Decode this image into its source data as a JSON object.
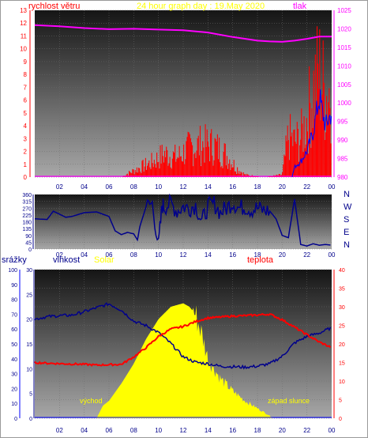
{
  "header": {
    "wind_label": "rychlost větru",
    "title": "24 hour graph day : 19.May 2020",
    "pressure_label": "tlak"
  },
  "bottom_header": {
    "rain_label": "srážky",
    "humidity_label": "vlhkost",
    "solar_label": "Solar",
    "temp_label": "teplota"
  },
  "sun": {
    "sunrise_label": "východ",
    "sunset_label": "západ slunce"
  },
  "colors": {
    "wind": "#ff0000",
    "gust": "#ff0000",
    "wind_avg": "#0000ff",
    "pressure": "#ff00ff",
    "direction": "#00008b",
    "humidity": "#00008b",
    "temperature": "#ff0000",
    "solar": "#ffff00",
    "rain": "#0000ff",
    "wind_axis": "#ff0000",
    "pressure_axis": "#ff00ff",
    "title": "#ffff00",
    "compass": "#00008b"
  },
  "chart_data": [
    {
      "type": "line",
      "name": "wind_pressure",
      "x_ticks": [
        "02",
        "04",
        "06",
        "08",
        "10",
        "12",
        "14",
        "16",
        "18",
        "20",
        "22",
        "00"
      ],
      "y_left_ticks": [
        "0",
        "1",
        "2",
        "3",
        "4",
        "5",
        "6",
        "7",
        "8",
        "9",
        "10",
        "11",
        "12",
        "13"
      ],
      "y_right_ticks": [
        "980",
        "985",
        "990",
        "995",
        "1000",
        "1005",
        "1010",
        "1015",
        "1020",
        "1025"
      ],
      "ylim_left": [
        0,
        13
      ],
      "ylim_right": [
        980,
        1025
      ],
      "xlim": [
        0,
        24
      ],
      "pressure": {
        "x": [
          0,
          2,
          4,
          6,
          8,
          10,
          12,
          14,
          16,
          18,
          19,
          20,
          21,
          22,
          23,
          24
        ],
        "y": [
          1021,
          1020.7,
          1020.2,
          1019.9,
          1020,
          1019.8,
          1019.6,
          1019,
          1017.8,
          1016.8,
          1016.6,
          1016.5,
          1016.8,
          1017.3,
          1017.9,
          1017.9
        ]
      },
      "wind_profile": {
        "x": [
          0,
          7,
          7.5,
          8.5,
          9.5,
          10.5,
          11.5,
          12.5,
          13.5,
          14.5,
          15.5,
          16.3,
          17,
          18.5,
          20,
          20.5,
          21,
          21.5,
          22,
          22.5,
          23,
          23.5,
          24
        ],
        "y": [
          0,
          0,
          0.3,
          0.8,
          1.3,
          2.0,
          1.7,
          2.5,
          2.8,
          2.7,
          1.9,
          0.8,
          0.2,
          0,
          0.2,
          3.5,
          3.0,
          3.4,
          5.0,
          7.5,
          9.0,
          7.0,
          8.0
        ]
      },
      "avg_wind": {
        "x": [
          0,
          20.8,
          21,
          21.5,
          22,
          22.5,
          23,
          23.5,
          24
        ],
        "y": [
          0,
          0,
          0.8,
          1.2,
          2.0,
          3.5,
          6.2,
          4.0,
          5.0
        ]
      }
    },
    {
      "type": "line",
      "name": "wind_direction",
      "x_ticks": [
        "02",
        "04",
        "06",
        "08",
        "10",
        "12",
        "14",
        "16",
        "18",
        "20",
        "22",
        "00"
      ],
      "y_ticks": [
        "0",
        "45",
        "90",
        "135",
        "180",
        "225",
        "270",
        "315",
        "360"
      ],
      "ylim": [
        0,
        360
      ],
      "compass_labels": [
        "N",
        "W",
        "S",
        "E",
        "N"
      ],
      "x": [
        0,
        1,
        1.5,
        2,
        2.5,
        3,
        4,
        5,
        6,
        6.5,
        7,
        7.5,
        8,
        8.3,
        8.5,
        9,
        9.5,
        10,
        10.3,
        10.5,
        11,
        11.5,
        12,
        12.5,
        13,
        13.5,
        14,
        14.5,
        15,
        15.5,
        16,
        16.5,
        17,
        17.5,
        18,
        18.5,
        19,
        19.5,
        20,
        20.5,
        21,
        21.5,
        22,
        22.5,
        23,
        23.5,
        24
      ],
      "y": [
        200,
        195,
        250,
        230,
        210,
        215,
        240,
        245,
        215,
        120,
        95,
        110,
        100,
        60,
        150,
        280,
        300,
        20,
        290,
        280,
        300,
        250,
        280,
        270,
        290,
        180,
        280,
        300,
        240,
        270,
        310,
        270,
        280,
        260,
        270,
        255,
        250,
        200,
        90,
        75,
        330,
        30,
        20,
        35,
        25,
        30,
        25
      ]
    },
    {
      "type": "line",
      "name": "temp_humidity_solar_rain",
      "x_ticks": [
        "02",
        "04",
        "06",
        "08",
        "10",
        "12",
        "14",
        "16",
        "18",
        "20",
        "22",
        "00"
      ],
      "rain_ticks": [
        "0",
        "10",
        "20",
        "30",
        "40",
        "50",
        "60",
        "70",
        "80",
        "90",
        "100"
      ],
      "humidity_ticks": [
        "0",
        "5",
        "10",
        "15",
        "20",
        "25",
        "30"
      ],
      "temp_ticks": [
        "0",
        "5",
        "10",
        "15",
        "20",
        "25",
        "30",
        "35",
        "40"
      ],
      "ylim_rain": [
        0,
        100
      ],
      "ylim_humidity": [
        0,
        30
      ],
      "ylim_temp": [
        0,
        40
      ],
      "humidity": {
        "x": [
          0,
          1,
          2,
          3,
          4,
          5,
          6,
          7,
          8,
          9,
          10,
          11,
          12,
          13,
          14,
          15,
          16,
          17,
          18,
          19,
          20,
          21,
          22,
          23,
          24
        ],
        "y": [
          20,
          20.5,
          20.7,
          20.8,
          21.5,
          22.3,
          23.1,
          21.8,
          19.6,
          18.7,
          17.3,
          15.1,
          12.4,
          11.3,
          11.0,
          10.5,
          10.4,
          10.3,
          10.5,
          11.0,
          12.5,
          15.2,
          16.5,
          17.2,
          18.3
        ]
      },
      "temperature": {
        "x": [
          0,
          1,
          2,
          3,
          4,
          5,
          6,
          7,
          8,
          9,
          10,
          11,
          12,
          13,
          14,
          15,
          16,
          17,
          18,
          19,
          20,
          21,
          22,
          23,
          24
        ],
        "y": [
          15.0,
          14.8,
          14.7,
          14.6,
          14.5,
          14.3,
          14.4,
          14.5,
          16.5,
          19.0,
          22.0,
          24.0,
          24.7,
          26.0,
          27.0,
          27.2,
          27.5,
          27.6,
          27.8,
          28.0,
          26.5,
          24.5,
          22.5,
          20.5,
          19.0
        ]
      },
      "solar": {
        "x": [
          0,
          5.0,
          5.5,
          6,
          7,
          8,
          9,
          10,
          11,
          12,
          12.5,
          13,
          13.5,
          14,
          14.5,
          15,
          16,
          17,
          18,
          19,
          19.2,
          24
        ],
        "y": [
          0,
          0,
          2.5,
          3.5,
          7.0,
          11.0,
          16.0,
          20.0,
          22.5,
          23.2,
          22.5,
          21.0,
          17.0,
          12.0,
          10.0,
          8.0,
          5.5,
          3.5,
          2.0,
          0.5,
          0,
          0
        ]
      },
      "rain": {
        "x": [
          0,
          24
        ],
        "y": [
          0,
          0
        ]
      }
    }
  ]
}
